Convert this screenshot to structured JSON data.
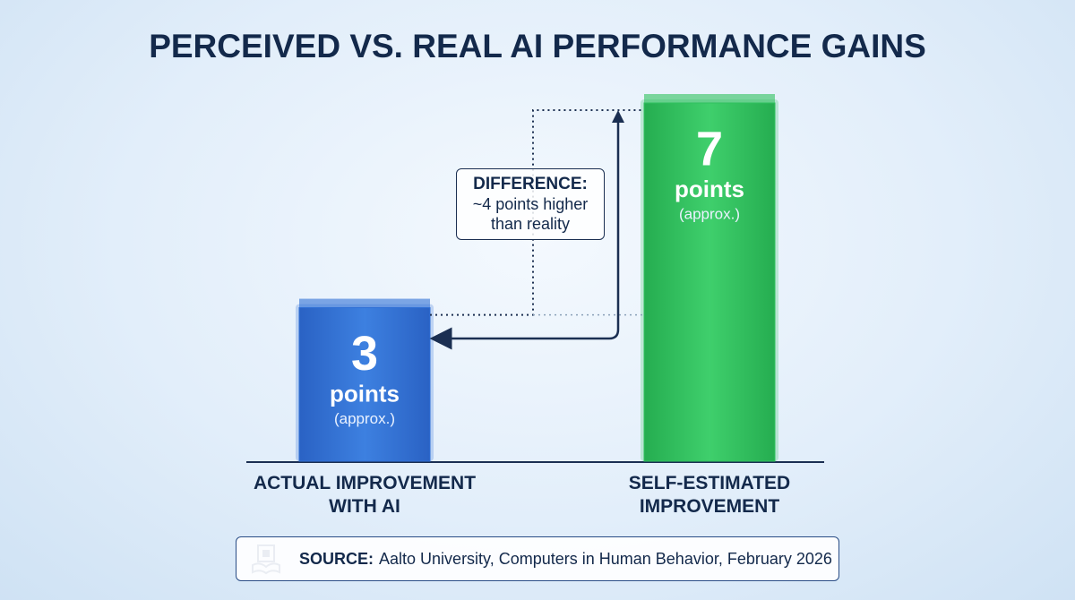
{
  "chart_data": {
    "type": "bar",
    "title": "PERCEIVED VS. REAL AI PERFORMANCE GAINS",
    "categories": [
      "ACTUAL IMPROVEMENT WITH AI",
      "SELF-ESTIMATED IMPROVEMENT"
    ],
    "values": [
      3,
      7
    ],
    "colors": [
      "#2f6fd6",
      "#2fc15e"
    ],
    "value_unit": "points",
    "value_note": "(approx.)",
    "ylim": [
      0,
      7
    ],
    "annotation": {
      "title": "DIFFERENCE:",
      "text": "~4 points higher than reality"
    },
    "source": {
      "label": "SOURCE:",
      "text": "Aalto University, Computers in Human Behavior, February 2026"
    }
  }
}
